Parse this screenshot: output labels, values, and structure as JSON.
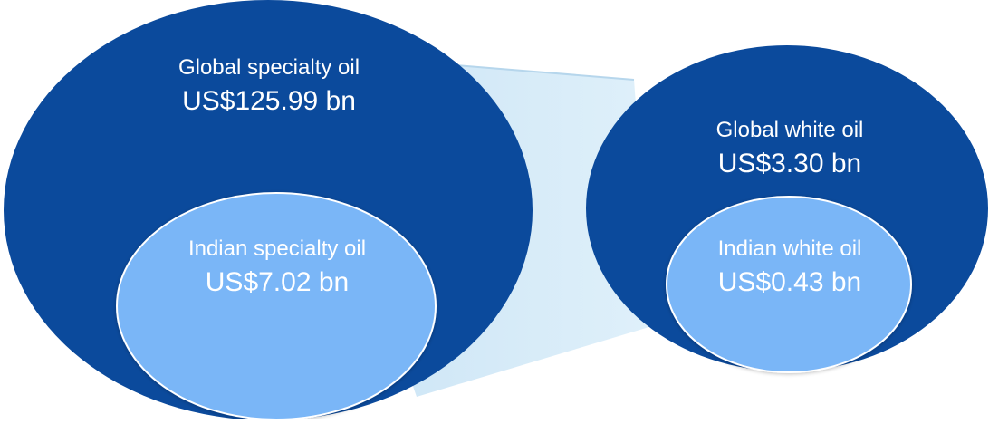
{
  "colors": {
    "outer_fill": "#0B4A9C",
    "inner_fill": "#7AB6F7",
    "connector_fill": "#D2EAF8",
    "connector_edge": "#BFDDF1",
    "outer_text": "#FFFFFF",
    "inner_text": "#FFFFFF",
    "inner_stroke": "#FFFFFF"
  },
  "specialty": {
    "global_label": "Global specialty oil",
    "global_value": "US$125.99 bn",
    "indian_label": "Indian specialty oil",
    "indian_value": "US$7.02 bn"
  },
  "white_oil": {
    "global_label": "Global white oil",
    "global_value": "US$3.30 bn",
    "indian_label": "Indian white oil",
    "indian_value": "US$0.43 bn"
  }
}
